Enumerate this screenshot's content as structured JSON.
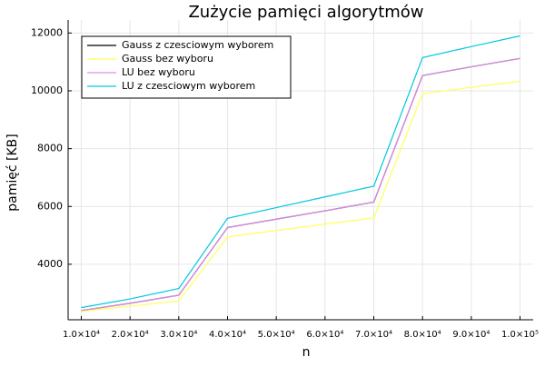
{
  "chart_data": {
    "type": "line",
    "title": "Zużycie pamięci algorytmów",
    "x_label": "n",
    "y_label": "pamięć [KB]",
    "x": [
      10000,
      20000,
      30000,
      40000,
      50000,
      60000,
      70000,
      80000,
      90000,
      100000
    ],
    "series": [
      {
        "name": "Gauss z czesciowym wyborem",
        "color": "#000000",
        "values": [
          2400,
          2650,
          2930,
          5270,
          5560,
          5850,
          6150,
          10530,
          10830,
          11120
        ]
      },
      {
        "name": "Gauss bez wyboru",
        "color": "#ffff55",
        "values": [
          2370,
          2550,
          2730,
          4950,
          5170,
          5390,
          5600,
          9900,
          10120,
          10330
        ]
      },
      {
        "name": "LU bez wyboru",
        "color": "#e08ee8",
        "values": [
          2400,
          2650,
          2930,
          5270,
          5560,
          5850,
          6150,
          10530,
          10830,
          11120
        ]
      },
      {
        "name": "LU z czesciowym wyborem",
        "color": "#00c8e0",
        "values": [
          2500,
          2800,
          3160,
          5590,
          5960,
          6330,
          6700,
          11150,
          11530,
          11900
        ]
      }
    ],
    "xlim": [
      7300,
      102700
    ],
    "xticks": [
      {
        "value": 10000,
        "label": "1.0×10⁴"
      },
      {
        "value": 20000,
        "label": "2.0×10⁴"
      },
      {
        "value": 30000,
        "label": "3.0×10⁴"
      },
      {
        "value": 40000,
        "label": "4.0×10⁴"
      },
      {
        "value": 50000,
        "label": "5.0×10⁴"
      },
      {
        "value": 60000,
        "label": "6.0×10⁴"
      },
      {
        "value": 70000,
        "label": "7.0×10⁴"
      },
      {
        "value": 80000,
        "label": "8.0×10⁴"
      },
      {
        "value": 90000,
        "label": "9.0×10⁴"
      },
      {
        "value": 100000,
        "label": "1.0×10⁵"
      }
    ],
    "ylim": [
      2080,
      12450
    ],
    "yticks": [
      4000,
      6000,
      8000,
      10000,
      12000
    ],
    "grid": true,
    "legend": "top-left"
  }
}
